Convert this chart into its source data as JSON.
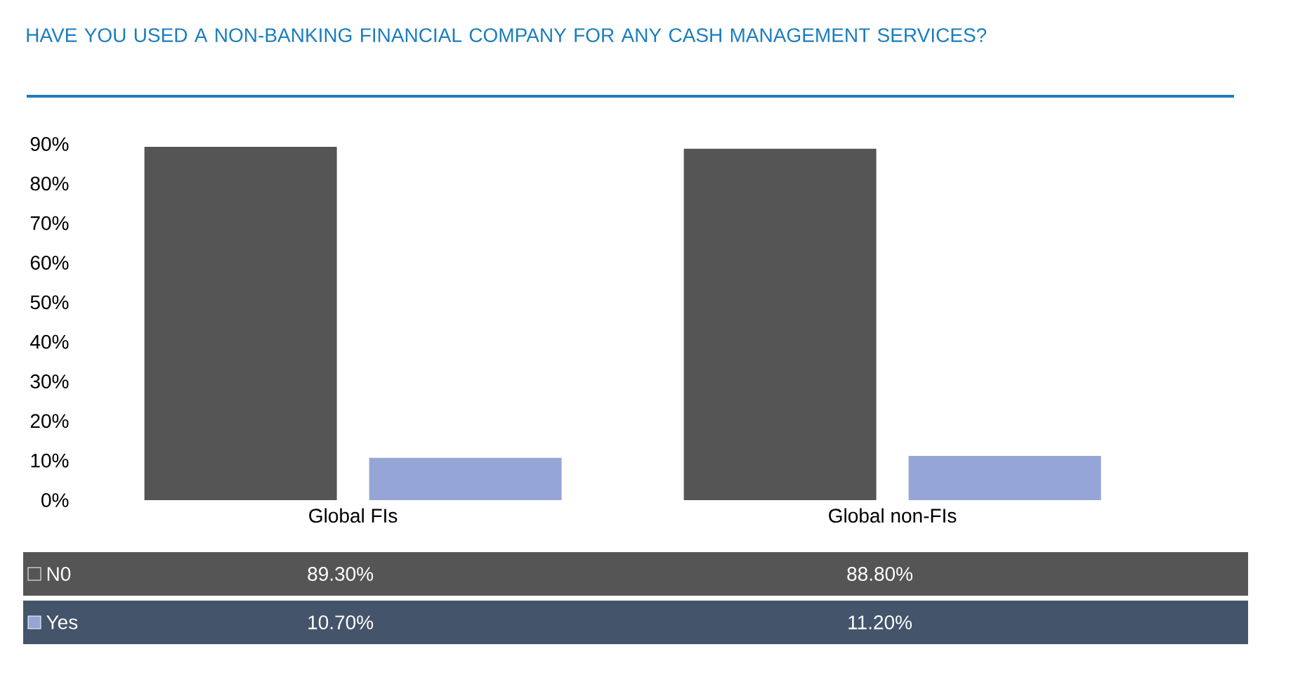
{
  "chart_data": {
    "type": "bar",
    "title": "HAVE YOU USED A NON-BANKING FINANCIAL COMPANY FOR ANY CASH MANAGEMENT SERVICES?",
    "categories": [
      "Global FIs",
      "Global non-FIs"
    ],
    "series": [
      {
        "name": "N0",
        "color": "#555555",
        "values": [
          89.3,
          88.8
        ],
        "value_labels": [
          "89.30%",
          "88.80%"
        ]
      },
      {
        "name": "Yes",
        "color": "#95a6d6",
        "values": [
          10.7,
          11.2
        ],
        "value_labels": [
          "10.70%",
          "11.20%"
        ]
      }
    ],
    "ylim": [
      0,
      90
    ],
    "yticks": [
      {
        "value": 0,
        "label": "0%"
      },
      {
        "value": 10,
        "label": "10%"
      },
      {
        "value": 20,
        "label": "20%"
      },
      {
        "value": 30,
        "label": "30%"
      },
      {
        "value": 40,
        "label": "40%"
      },
      {
        "value": 50,
        "label": "50%"
      },
      {
        "value": 60,
        "label": "60%"
      },
      {
        "value": 70,
        "label": "70%"
      },
      {
        "value": 80,
        "label": "80%"
      },
      {
        "value": 90,
        "label": "90%"
      }
    ],
    "grid": false,
    "legend": "bottom"
  }
}
